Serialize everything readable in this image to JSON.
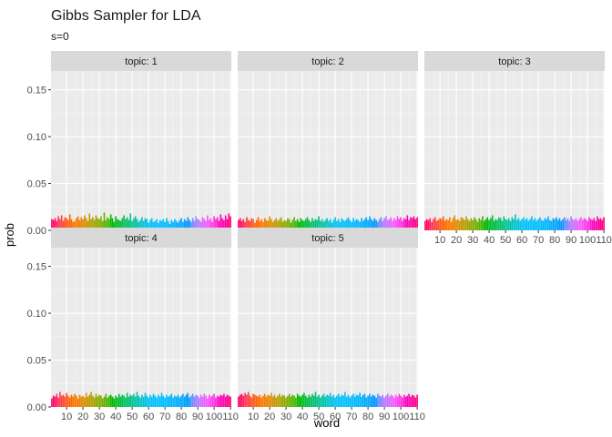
{
  "chart_data": {
    "type": "bar",
    "title": "Gibbs Sampler for LDA",
    "subtitle": "s=0",
    "xlabel": "word",
    "ylabel": "prob",
    "ylim": [
      0,
      0.17
    ],
    "xlim": [
      0.5,
      110.5
    ],
    "y_ticks": [
      "0.00",
      "0.05",
      "0.10",
      "0.15"
    ],
    "y_tick_values": [
      0,
      0.05,
      0.1,
      0.15
    ],
    "x_ticks": [
      "10",
      "20",
      "30",
      "40",
      "50",
      "60",
      "70",
      "80",
      "90",
      "100",
      "110"
    ],
    "x_tick_values": [
      10,
      20,
      30,
      40,
      50,
      60,
      70,
      80,
      90,
      100,
      110
    ],
    "n_words": 110,
    "grid": true,
    "legend": "none",
    "facet_layout": {
      "rows": 2,
      "cols": 3
    },
    "facets": [
      {
        "label": "topic: 1",
        "values": [
          0.012,
          0.011,
          0.013,
          0.01,
          0.015,
          0.012,
          0.016,
          0.01,
          0.014,
          0.013,
          0.011,
          0.017,
          0.012,
          0.009,
          0.01,
          0.013,
          0.015,
          0.011,
          0.014,
          0.012,
          0.016,
          0.013,
          0.01,
          0.018,
          0.012,
          0.014,
          0.011,
          0.016,
          0.013,
          0.012,
          0.015,
          0.01,
          0.019,
          0.011,
          0.014,
          0.012,
          0.017,
          0.013,
          0.009,
          0.015,
          0.012,
          0.011,
          0.01,
          0.013,
          0.016,
          0.012,
          0.014,
          0.011,
          0.018,
          0.01,
          0.013,
          0.015,
          0.012,
          0.009,
          0.011,
          0.014,
          0.01,
          0.013,
          0.012,
          0.008,
          0.011,
          0.013,
          0.009,
          0.01,
          0.012,
          0.008,
          0.011,
          0.01,
          0.012,
          0.009,
          0.013,
          0.01,
          0.007,
          0.011,
          0.009,
          0.012,
          0.01,
          0.008,
          0.011,
          0.013,
          0.009,
          0.012,
          0.01,
          0.014,
          0.011,
          0.009,
          0.013,
          0.01,
          0.015,
          0.012,
          0.011,
          0.009,
          0.014,
          0.012,
          0.01,
          0.016,
          0.011,
          0.013,
          0.009,
          0.015,
          0.012,
          0.014,
          0.01,
          0.017,
          0.013,
          0.011,
          0.016,
          0.012,
          0.018,
          0.015
        ]
      },
      {
        "label": "topic: 2",
        "values": [
          0.011,
          0.013,
          0.01,
          0.012,
          0.009,
          0.014,
          0.011,
          0.01,
          0.013,
          0.012,
          0.008,
          0.011,
          0.014,
          0.01,
          0.012,
          0.009,
          0.013,
          0.011,
          0.01,
          0.015,
          0.012,
          0.009,
          0.011,
          0.013,
          0.01,
          0.012,
          0.014,
          0.009,
          0.011,
          0.01,
          0.013,
          0.012,
          0.008,
          0.011,
          0.014,
          0.01,
          0.012,
          0.009,
          0.013,
          0.011,
          0.01,
          0.012,
          0.014,
          0.011,
          0.009,
          0.013,
          0.01,
          0.012,
          0.011,
          0.015,
          0.01,
          0.012,
          0.009,
          0.011,
          0.013,
          0.01,
          0.012,
          0.008,
          0.011,
          0.014,
          0.01,
          0.012,
          0.009,
          0.013,
          0.011,
          0.01,
          0.012,
          0.014,
          0.011,
          0.009,
          0.013,
          0.01,
          0.012,
          0.011,
          0.009,
          0.013,
          0.01,
          0.012,
          0.014,
          0.011,
          0.015,
          0.012,
          0.01,
          0.013,
          0.011,
          0.009,
          0.012,
          0.014,
          0.01,
          0.013,
          0.015,
          0.011,
          0.012,
          0.014,
          0.01,
          0.013,
          0.011,
          0.015,
          0.012,
          0.014,
          0.01,
          0.013,
          0.012,
          0.016,
          0.011,
          0.014,
          0.013,
          0.015,
          0.012,
          0.014
        ]
      },
      {
        "label": "topic: 3",
        "values": [
          0.01,
          0.012,
          0.011,
          0.013,
          0.009,
          0.012,
          0.014,
          0.01,
          0.011,
          0.013,
          0.012,
          0.015,
          0.01,
          0.012,
          0.011,
          0.014,
          0.009,
          0.013,
          0.016,
          0.011,
          0.012,
          0.01,
          0.014,
          0.013,
          0.011,
          0.015,
          0.012,
          0.01,
          0.013,
          0.011,
          0.014,
          0.012,
          0.009,
          0.013,
          0.011,
          0.015,
          0.01,
          0.012,
          0.014,
          0.011,
          0.013,
          0.016,
          0.01,
          0.012,
          0.011,
          0.014,
          0.013,
          0.01,
          0.015,
          0.012,
          0.011,
          0.013,
          0.01,
          0.014,
          0.012,
          0.017,
          0.011,
          0.013,
          0.01,
          0.012,
          0.014,
          0.011,
          0.013,
          0.01,
          0.012,
          0.015,
          0.011,
          0.013,
          0.01,
          0.012,
          0.014,
          0.011,
          0.01,
          0.013,
          0.012,
          0.015,
          0.011,
          0.01,
          0.013,
          0.012,
          0.014,
          0.011,
          0.013,
          0.01,
          0.012,
          0.014,
          0.011,
          0.013,
          0.01,
          0.015,
          0.012,
          0.011,
          0.013,
          0.01,
          0.012,
          0.014,
          0.011,
          0.013,
          0.012,
          0.01,
          0.014,
          0.012,
          0.011,
          0.013,
          0.01,
          0.015,
          0.012,
          0.013,
          0.011,
          0.014
        ]
      },
      {
        "label": "topic: 4",
        "values": [
          0.009,
          0.012,
          0.011,
          0.014,
          0.01,
          0.016,
          0.012,
          0.013,
          0.011,
          0.015,
          0.012,
          0.01,
          0.013,
          0.011,
          0.014,
          0.012,
          0.009,
          0.013,
          0.011,
          0.012,
          0.01,
          0.015,
          0.011,
          0.013,
          0.016,
          0.012,
          0.01,
          0.014,
          0.011,
          0.013,
          0.012,
          0.009,
          0.011,
          0.014,
          0.01,
          0.012,
          0.013,
          0.011,
          0.009,
          0.012,
          0.01,
          0.014,
          0.011,
          0.013,
          0.012,
          0.01,
          0.015,
          0.011,
          0.013,
          0.012,
          0.014,
          0.011,
          0.016,
          0.012,
          0.01,
          0.013,
          0.011,
          0.015,
          0.012,
          0.01,
          0.013,
          0.011,
          0.014,
          0.012,
          0.01,
          0.013,
          0.011,
          0.015,
          0.012,
          0.01,
          0.013,
          0.011,
          0.012,
          0.014,
          0.01,
          0.012,
          0.011,
          0.013,
          0.01,
          0.012,
          0.014,
          0.011,
          0.013,
          0.015,
          0.01,
          0.012,
          0.014,
          0.011,
          0.013,
          0.012,
          0.01,
          0.013,
          0.011,
          0.014,
          0.012,
          0.009,
          0.013,
          0.011,
          0.012,
          0.014,
          0.01,
          0.012,
          0.011,
          0.013,
          0.012,
          0.014,
          0.011,
          0.013,
          0.012,
          0.011
        ]
      },
      {
        "label": "topic: 5",
        "values": [
          0.011,
          0.013,
          0.014,
          0.012,
          0.015,
          0.013,
          0.016,
          0.012,
          0.01,
          0.014,
          0.013,
          0.012,
          0.011,
          0.013,
          0.01,
          0.012,
          0.014,
          0.011,
          0.013,
          0.012,
          0.015,
          0.011,
          0.013,
          0.01,
          0.012,
          0.014,
          0.011,
          0.013,
          0.012,
          0.01,
          0.012,
          0.014,
          0.011,
          0.013,
          0.012,
          0.01,
          0.014,
          0.012,
          0.011,
          0.013,
          0.015,
          0.012,
          0.01,
          0.013,
          0.011,
          0.014,
          0.012,
          0.016,
          0.011,
          0.013,
          0.01,
          0.012,
          0.014,
          0.011,
          0.013,
          0.012,
          0.015,
          0.011,
          0.013,
          0.01,
          0.012,
          0.014,
          0.011,
          0.013,
          0.012,
          0.016,
          0.011,
          0.013,
          0.01,
          0.012,
          0.014,
          0.011,
          0.013,
          0.012,
          0.015,
          0.011,
          0.013,
          0.014,
          0.01,
          0.012,
          0.014,
          0.011,
          0.013,
          0.012,
          0.01,
          0.014,
          0.012,
          0.011,
          0.013,
          0.01,
          0.012,
          0.014,
          0.011,
          0.013,
          0.012,
          0.01,
          0.013,
          0.011,
          0.014,
          0.012,
          0.01,
          0.013,
          0.011,
          0.012,
          0.014,
          0.011,
          0.013,
          0.012,
          0.01,
          0.013
        ]
      }
    ]
  }
}
